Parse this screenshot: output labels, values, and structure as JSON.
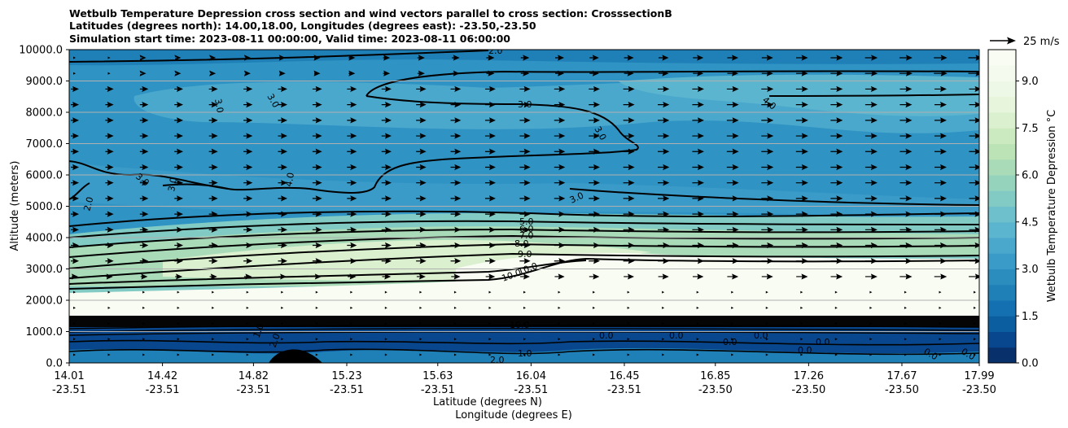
{
  "title_lines": [
    "Wetbulb Temperature Depression cross section and wind vectors parallel to cross section: CrosssectionB",
    "Latitudes (degrees north): 14.00,18.00, Longitudes (degrees east): -23.50,-23.50",
    "Simulation start time: 2023-08-11 00:00:00, Valid time: 2023-08-11 06:00:00"
  ],
  "chart_data": {
    "type": "contour_cross_section",
    "ylabel": "Altitude (meters)",
    "xlabel_lines": [
      "Latitude (degrees N)",
      "Longitude (degrees E)"
    ],
    "ylim": [
      0,
      10000
    ],
    "y_ticks": [
      "0.0",
      "1000.0",
      "2000.0",
      "3000.0",
      "4000.0",
      "5000.0",
      "6000.0",
      "7000.0",
      "8000.0",
      "9000.0",
      "10000.0"
    ],
    "y_tick_values": [
      0,
      1000,
      2000,
      3000,
      4000,
      5000,
      6000,
      7000,
      8000,
      9000,
      10000
    ],
    "x_ticks": [
      {
        "lat": "14.01",
        "lon": "-23.51",
        "frac": 0.0
      },
      {
        "lat": "14.42",
        "lon": "-23.51",
        "frac": 0.1025
      },
      {
        "lat": "14.82",
        "lon": "-23.51",
        "frac": 0.2025
      },
      {
        "lat": "15.23",
        "lon": "-23.51",
        "frac": 0.305
      },
      {
        "lat": "15.63",
        "lon": "-23.51",
        "frac": 0.405
      },
      {
        "lat": "16.04",
        "lon": "-23.51",
        "frac": 0.5075
      },
      {
        "lat": "16.45",
        "lon": "-23.51",
        "frac": 0.61
      },
      {
        "lat": "16.85",
        "lon": "-23.50",
        "frac": 0.71
      },
      {
        "lat": "17.26",
        "lon": "-23.50",
        "frac": 0.8125
      },
      {
        "lat": "17.67",
        "lon": "-23.50",
        "frac": 0.915
      },
      {
        "lat": "17.99",
        "lon": "-23.50",
        "frac": 1.0
      }
    ],
    "grid_y": true,
    "colorbar": {
      "label": "Wetbulb Temperature Depression °C",
      "ticks": [
        "0.0",
        "1.5",
        "3.0",
        "4.5",
        "6.0",
        "7.5",
        "9.0"
      ],
      "tick_values": [
        0,
        1.5,
        3.0,
        4.5,
        6.0,
        7.5,
        9.0
      ],
      "min": 0,
      "max": 10,
      "colors": [
        "#08306b",
        "#08478d",
        "#0b5ea0",
        "#1470b0",
        "#1f80b8",
        "#2b8cbe",
        "#3a9bc8",
        "#4ba8cd",
        "#5cb5ce",
        "#6dc0cc",
        "#82cbc4",
        "#96d3bd",
        "#a9dbb8",
        "#bbe3b6",
        "#cceabf",
        "#dbf0cf",
        "#e6f5dc",
        "#eef8e6",
        "#f4fbee",
        "#f8fcf3"
      ]
    },
    "wind_key": {
      "label": "25 m/s",
      "magnitude": 25
    },
    "contour_levels_labeled": [
      "0.0",
      "1.0",
      "2.0",
      "3.0",
      "4.0",
      "5.0",
      "6.0",
      "7.0",
      "8.0",
      "9.0",
      "10.0"
    ]
  }
}
